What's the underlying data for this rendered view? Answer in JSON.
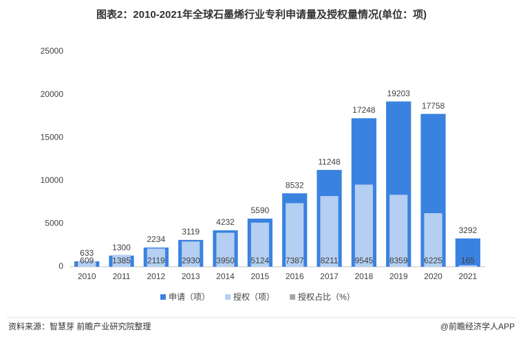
{
  "chart_data": {
    "type": "bar",
    "title": "图表2：2010-2021年全球石墨烯行业专利申请量及授权量情况(单位：项)",
    "categories": [
      "2010",
      "2011",
      "2012",
      "2013",
      "2014",
      "2015",
      "2016",
      "2017",
      "2018",
      "2019",
      "2020",
      "2021"
    ],
    "series": [
      {
        "name": "申请（项）",
        "color": "#3a82e0",
        "values": [
          633,
          1300,
          2234,
          3119,
          4232,
          5590,
          8532,
          11248,
          17248,
          19203,
          17758,
          3292
        ]
      },
      {
        "name": "授权（项）",
        "color": "#b4cff2",
        "values": [
          609,
          1385,
          2119,
          2930,
          3950,
          5124,
          7387,
          8211,
          9545,
          8359,
          6225,
          165
        ]
      },
      {
        "name": "授权占比（%）",
        "color": "#a6a6a6",
        "values": [
          null,
          null,
          null,
          null,
          null,
          null,
          null,
          null,
          null,
          null,
          null,
          null
        ]
      }
    ],
    "ylim": [
      0,
      25000
    ],
    "yticks": [
      0,
      5000,
      10000,
      15000,
      20000,
      25000
    ],
    "grid": false,
    "source": "资料来源：智慧芽 前瞻产业研究院整理",
    "credit": "@前瞻经济学人APP"
  }
}
